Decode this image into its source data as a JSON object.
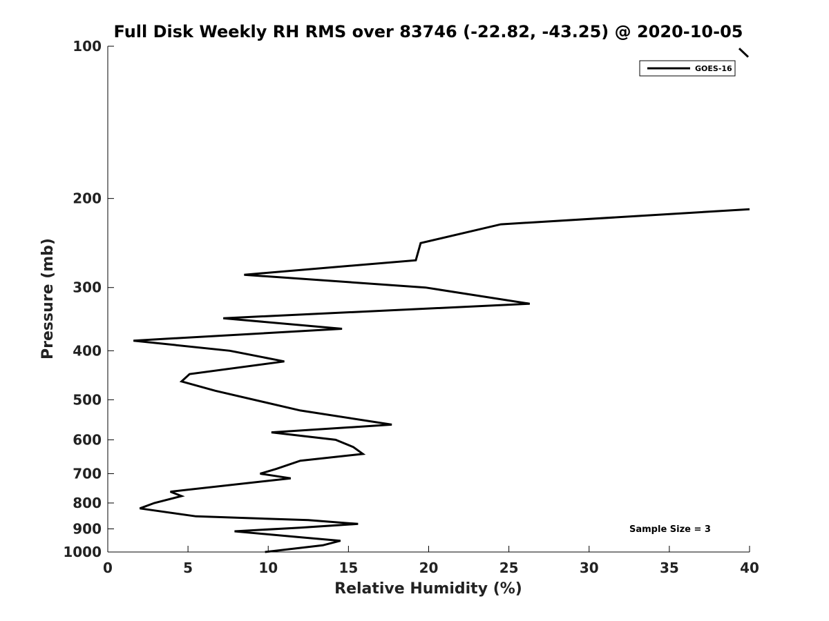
{
  "chart_data": {
    "type": "line",
    "title": "Full Disk Weekly RH RMS over 83746 (-22.82, -43.25) @ 2020-10-05",
    "xlabel": "Relative Humidity (%)",
    "ylabel": "Pressure (mb)",
    "xlim": [
      0,
      40
    ],
    "ylim": [
      100,
      1000
    ],
    "y_scale": "log",
    "y_inverted": true,
    "xticks": [
      0,
      5,
      10,
      15,
      20,
      25,
      30,
      35,
      40
    ],
    "yticks": [
      100,
      200,
      300,
      400,
      500,
      600,
      700,
      800,
      900,
      1000
    ],
    "grid": false,
    "legend_position": "top-right",
    "annotation": "Sample Size = 3",
    "series": [
      {
        "name": "GOES-16",
        "color": "#000000",
        "points": [
          {
            "x": 40.0,
            "y": 210
          },
          {
            "x": 24.5,
            "y": 225
          },
          {
            "x": 19.5,
            "y": 245
          },
          {
            "x": 19.2,
            "y": 265
          },
          {
            "x": 8.5,
            "y": 283
          },
          {
            "x": 19.8,
            "y": 300
          },
          {
            "x": 26.3,
            "y": 323
          },
          {
            "x": 7.2,
            "y": 345
          },
          {
            "x": 14.6,
            "y": 362
          },
          {
            "x": 1.6,
            "y": 382
          },
          {
            "x": 7.6,
            "y": 400
          },
          {
            "x": 11.0,
            "y": 420
          },
          {
            "x": 5.1,
            "y": 445
          },
          {
            "x": 4.6,
            "y": 460
          },
          {
            "x": 6.7,
            "y": 480
          },
          {
            "x": 12.0,
            "y": 525
          },
          {
            "x": 17.7,
            "y": 560
          },
          {
            "x": 10.2,
            "y": 580
          },
          {
            "x": 14.2,
            "y": 600
          },
          {
            "x": 15.3,
            "y": 620
          },
          {
            "x": 15.9,
            "y": 640
          },
          {
            "x": 12.0,
            "y": 660
          },
          {
            "x": 10.5,
            "y": 685
          },
          {
            "x": 9.5,
            "y": 700
          },
          {
            "x": 11.4,
            "y": 715
          },
          {
            "x": 3.9,
            "y": 760
          },
          {
            "x": 4.6,
            "y": 775
          },
          {
            "x": 2.9,
            "y": 800
          },
          {
            "x": 2.0,
            "y": 820
          },
          {
            "x": 5.5,
            "y": 850
          },
          {
            "x": 12.5,
            "y": 865
          },
          {
            "x": 15.6,
            "y": 880
          },
          {
            "x": 12.0,
            "y": 895
          },
          {
            "x": 7.9,
            "y": 910
          },
          {
            "x": 12.0,
            "y": 935
          },
          {
            "x": 14.5,
            "y": 950
          },
          {
            "x": 13.4,
            "y": 970
          },
          {
            "x": 9.8,
            "y": 1000
          }
        ]
      }
    ]
  }
}
